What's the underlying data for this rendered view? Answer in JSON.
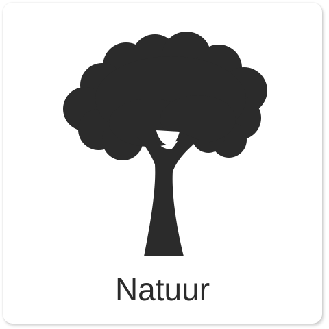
{
  "tile": {
    "label": "Natuur",
    "icon": "tree-icon",
    "icon_color": "#2b2b2b",
    "background_color": "#ffffff"
  }
}
